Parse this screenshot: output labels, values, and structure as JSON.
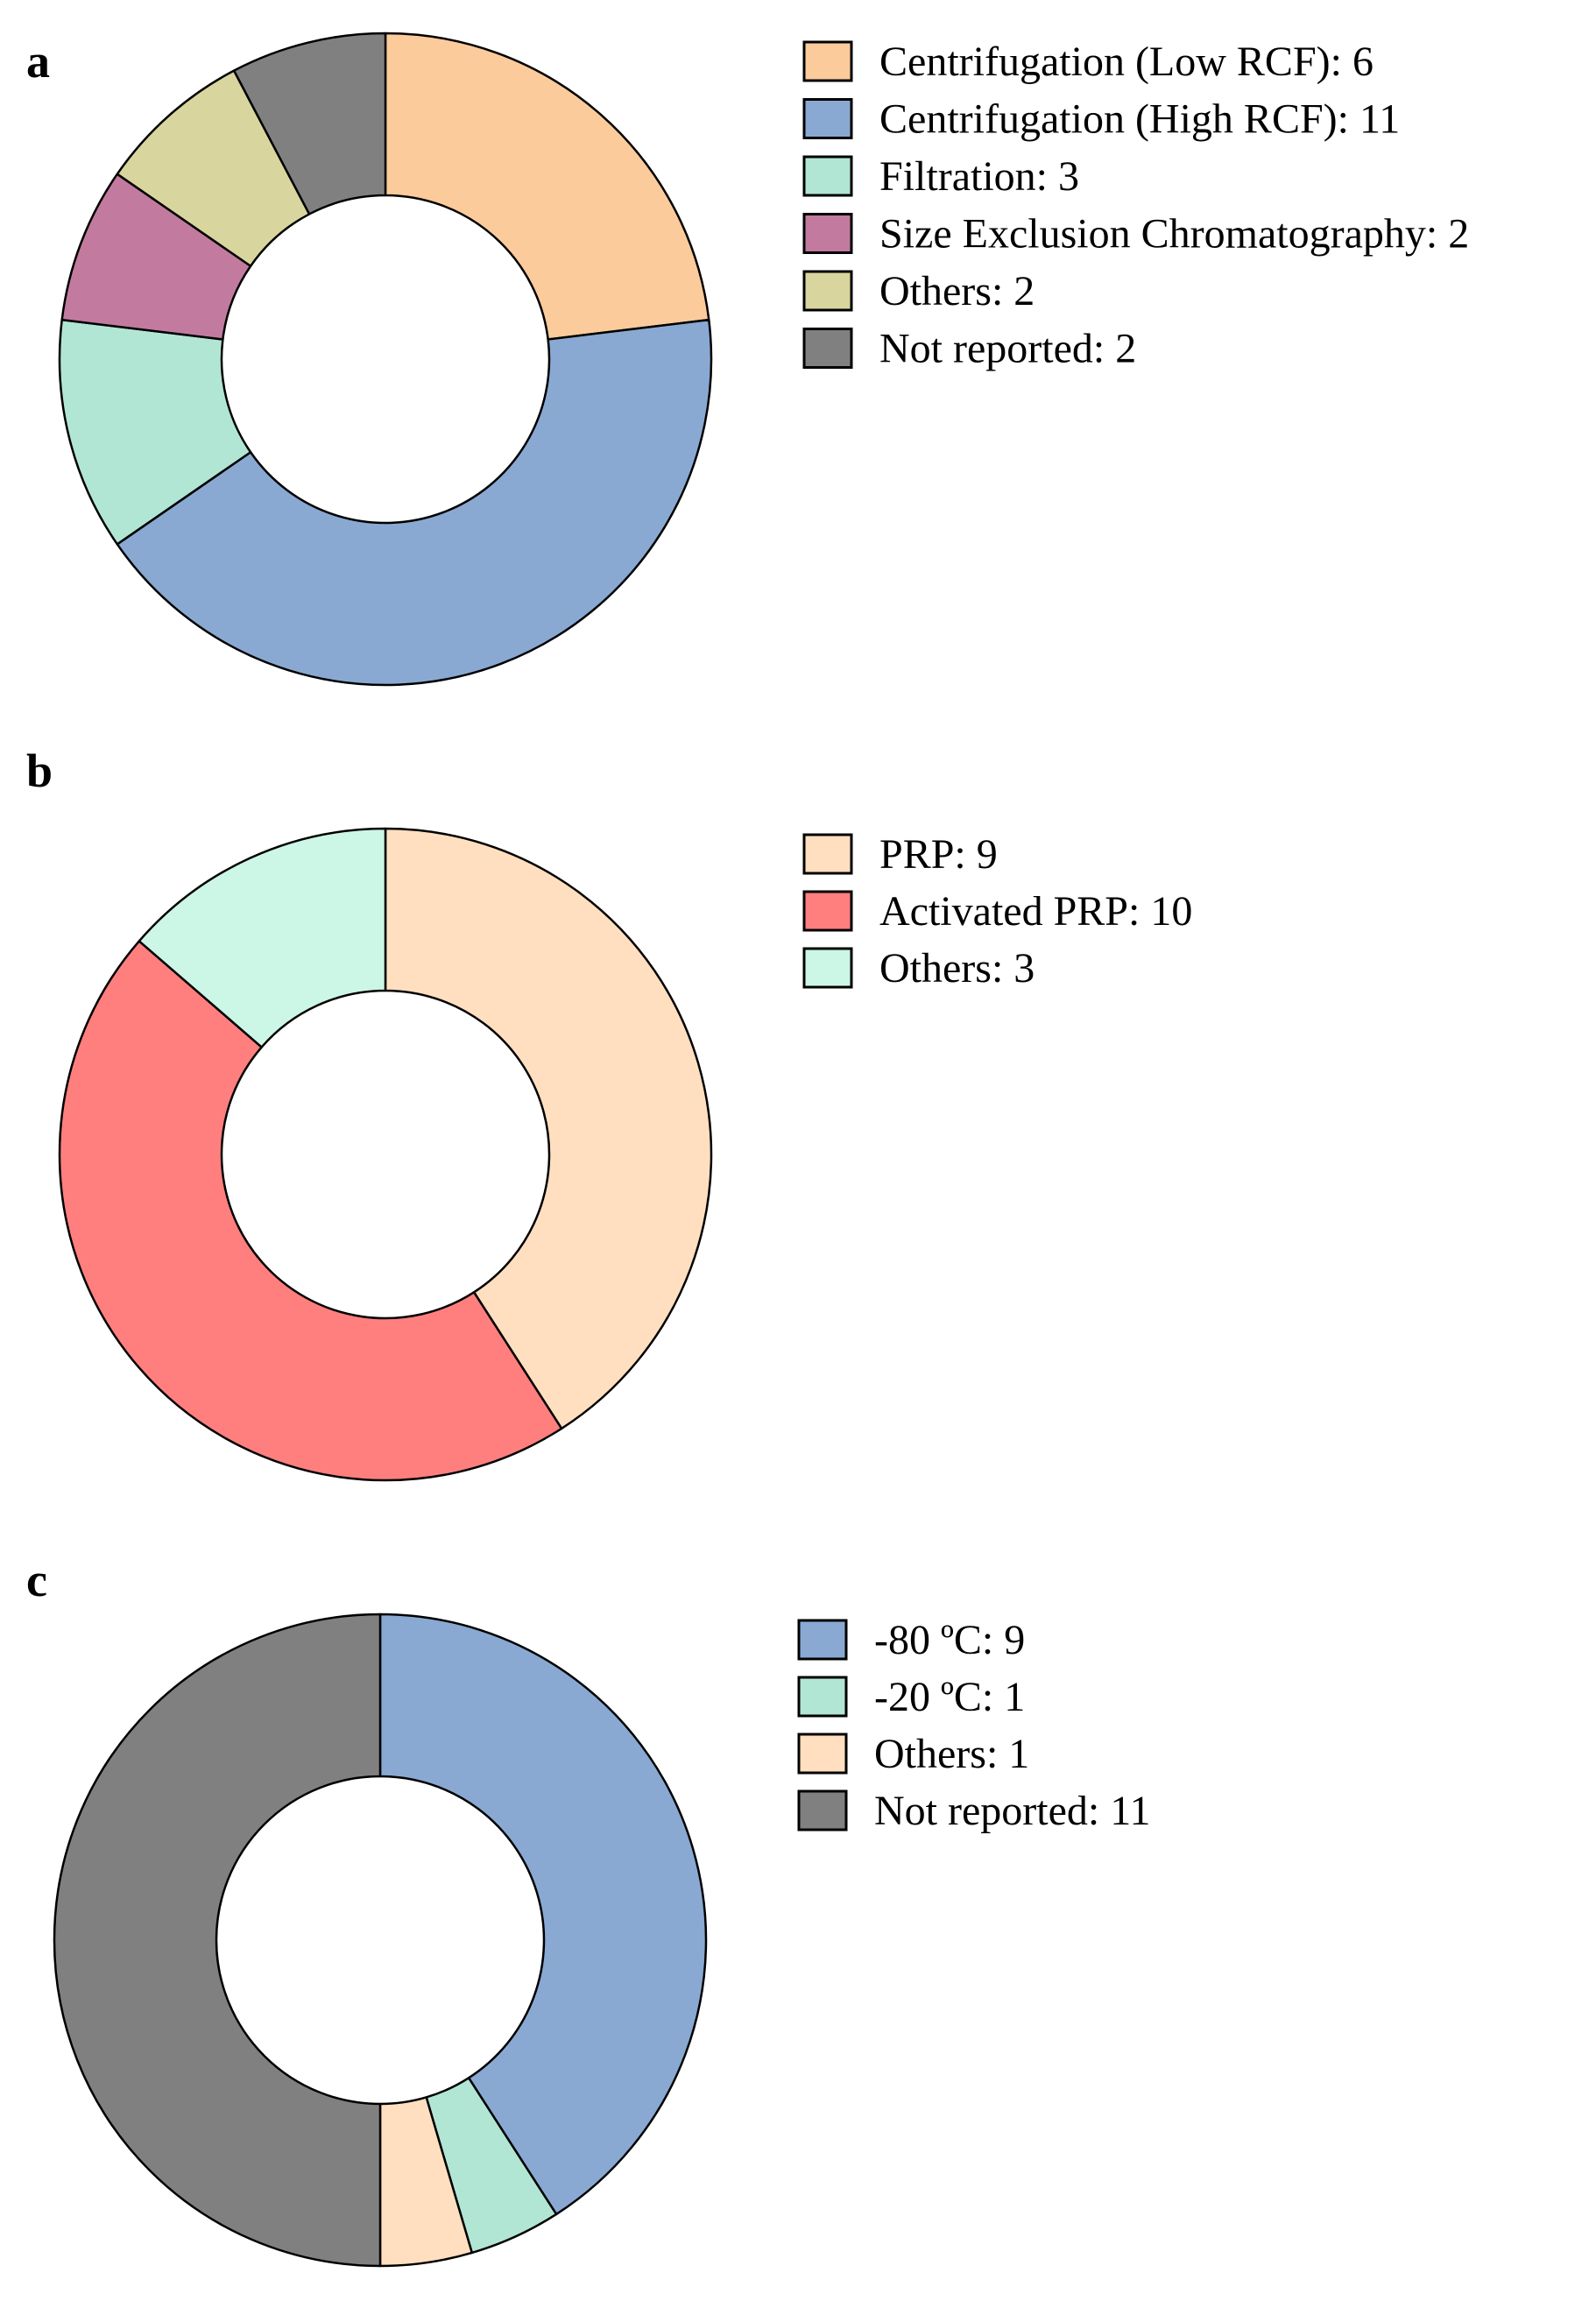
{
  "chart_data": [
    {
      "type": "pie",
      "donut": true,
      "panel_label": "a",
      "legend_position": "right",
      "categories": [
        "Centrifugation (Low RCF): 6",
        "Centrifugation (High RCF): 11",
        "Filtration: 3",
        "Size Exclusion Chromatography: 2",
        "Others: 2",
        "Not reported: 2"
      ],
      "values": [
        6,
        11,
        3,
        2,
        2,
        2
      ],
      "colors": [
        "#FBCB9C",
        "#89A9D2",
        "#B2E6D4",
        "#C27B9F",
        "#D8D69E",
        "#808080"
      ]
    },
    {
      "type": "pie",
      "donut": true,
      "panel_label": "b",
      "legend_position": "right",
      "categories": [
        "PRP: 9",
        "Activated PRP: 10",
        "Others: 3"
      ],
      "values": [
        9,
        10,
        3
      ],
      "colors": [
        "#FFDFBF",
        "#FF7F7F",
        "#CCF7E6"
      ]
    },
    {
      "type": "pie",
      "donut": true,
      "panel_label": "c",
      "legend_position": "right",
      "categories": [
        "-80 ºC: 9",
        "-20 ºC: 1",
        "Others: 1",
        "Not reported: 11"
      ],
      "values": [
        9,
        1,
        1,
        11
      ],
      "colors": [
        "#89A9D2",
        "#B2E6D4",
        "#FFDFBF",
        "#808080"
      ]
    }
  ]
}
